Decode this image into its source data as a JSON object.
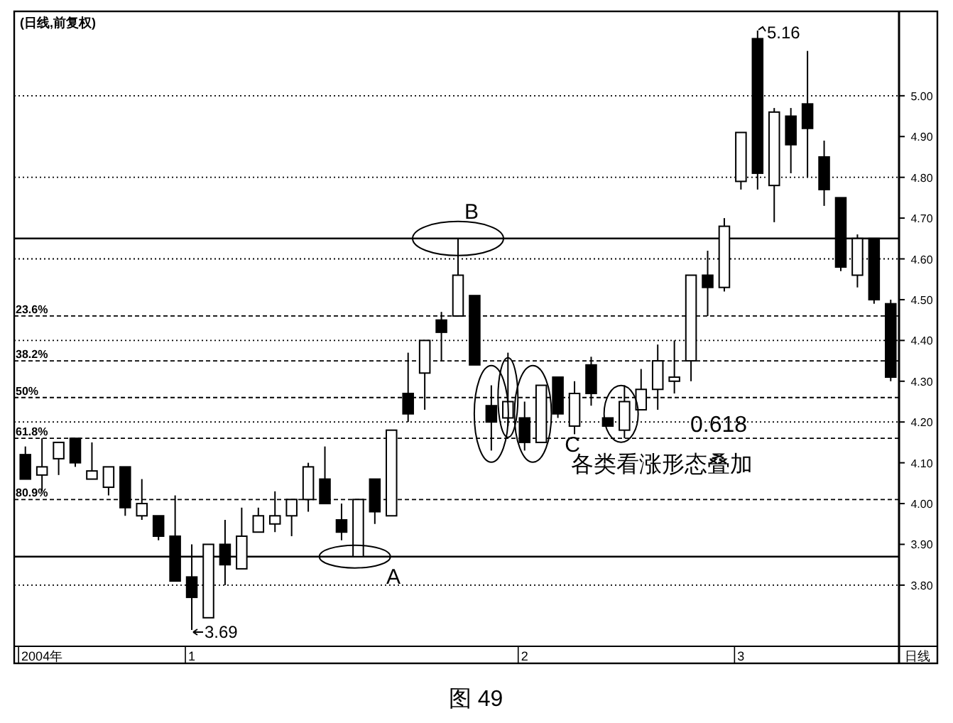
{
  "chart_data": {
    "type": "candlestick",
    "title": "(日线,前复权)",
    "categories": [
      null,
      "2004年",
      null,
      null,
      null,
      null,
      null,
      null,
      null,
      null,
      "1",
      null,
      null,
      null,
      null,
      null,
      null,
      null,
      null,
      null,
      null,
      null,
      null,
      null,
      null,
      null,
      null,
      null,
      null,
      null,
      "2",
      null,
      null,
      null,
      null,
      null,
      null,
      null,
      null,
      null,
      null,
      null,
      null,
      "3",
      null,
      null,
      null,
      null,
      null,
      null,
      null,
      null,
      null
    ],
    "ohlc": [
      [
        4.12,
        4.14,
        4.06,
        4.06
      ],
      [
        4.07,
        4.16,
        4.03,
        4.09
      ],
      [
        4.11,
        4.15,
        4.07,
        4.15
      ],
      [
        4.16,
        4.16,
        4.09,
        4.1
      ],
      [
        4.06,
        4.15,
        4.06,
        4.08
      ],
      [
        4.04,
        4.09,
        4.02,
        4.09
      ],
      [
        4.09,
        4.09,
        3.97,
        3.99
      ],
      [
        3.97,
        4.06,
        3.96,
        4.0
      ],
      [
        3.97,
        3.97,
        3.91,
        3.92
      ],
      [
        3.92,
        4.02,
        3.81,
        3.81
      ],
      [
        3.82,
        3.9,
        3.69,
        3.77
      ],
      [
        3.72,
        3.9,
        3.72,
        3.9
      ],
      [
        3.9,
        3.96,
        3.8,
        3.85
      ],
      [
        3.84,
        3.99,
        3.84,
        3.92
      ],
      [
        3.93,
        3.99,
        3.93,
        3.97
      ],
      [
        3.95,
        4.03,
        3.93,
        3.97
      ],
      [
        3.97,
        4.01,
        3.92,
        4.01
      ],
      [
        4.01,
        4.1,
        3.98,
        4.09
      ],
      [
        4.06,
        4.14,
        4.0,
        4.0
      ],
      [
        3.96,
        4.0,
        3.91,
        3.93
      ],
      [
        3.87,
        4.01,
        3.87,
        4.01
      ],
      [
        4.06,
        4.06,
        3.95,
        3.98
      ],
      [
        3.97,
        4.18,
        3.97,
        4.18
      ],
      [
        4.27,
        4.37,
        4.2,
        4.22
      ],
      [
        4.32,
        4.4,
        4.23,
        4.4
      ],
      [
        4.45,
        4.47,
        4.35,
        4.42
      ],
      [
        4.46,
        4.65,
        4.46,
        4.56
      ],
      [
        4.51,
        4.51,
        4.34,
        4.34
      ],
      [
        4.24,
        4.29,
        4.13,
        4.2
      ],
      [
        4.21,
        4.37,
        4.19,
        4.25
      ],
      [
        4.21,
        4.25,
        4.13,
        4.15
      ],
      [
        4.15,
        4.29,
        4.15,
        4.29
      ],
      [
        4.31,
        4.31,
        4.21,
        4.22
      ],
      [
        4.19,
        4.3,
        4.17,
        4.27
      ],
      [
        4.34,
        4.36,
        4.24,
        4.27
      ],
      [
        4.21,
        4.21,
        4.19,
        4.19
      ],
      [
        4.18,
        4.29,
        4.16,
        4.25
      ],
      [
        4.23,
        4.33,
        4.23,
        4.28
      ],
      [
        4.28,
        4.39,
        4.23,
        4.35
      ],
      [
        4.3,
        4.4,
        4.27,
        4.31
      ],
      [
        4.35,
        4.56,
        4.3,
        4.56
      ],
      [
        4.56,
        4.62,
        4.46,
        4.53
      ],
      [
        4.53,
        4.7,
        4.52,
        4.68
      ],
      [
        4.79,
        4.91,
        4.77,
        4.91
      ],
      [
        5.14,
        5.16,
        4.77,
        4.81
      ],
      [
        4.78,
        4.97,
        4.69,
        4.96
      ],
      [
        4.95,
        4.97,
        4.81,
        4.88
      ],
      [
        4.98,
        5.11,
        4.8,
        4.92
      ],
      [
        4.85,
        4.89,
        4.73,
        4.77
      ],
      [
        4.75,
        4.75,
        4.57,
        4.58
      ],
      [
        4.56,
        4.66,
        4.53,
        4.65
      ],
      [
        4.65,
        4.65,
        4.49,
        4.5
      ],
      [
        4.49,
        4.5,
        4.3,
        4.31
      ]
    ],
    "ylim": [
      3.65,
      5.2
    ],
    "yticks": [
      {
        "value": 3.8,
        "label": "3.80"
      },
      {
        "value": 3.9,
        "label": "3.90"
      },
      {
        "value": 4.0,
        "label": "4.00"
      },
      {
        "value": 4.1,
        "label": "4.10"
      },
      {
        "value": 4.2,
        "label": "4.20"
      },
      {
        "value": 4.3,
        "label": "4.30"
      },
      {
        "value": 4.4,
        "label": "4.40"
      },
      {
        "value": 4.5,
        "label": "4.50"
      },
      {
        "value": 4.6,
        "label": "4.60"
      },
      {
        "value": 4.7,
        "label": "4.70"
      },
      {
        "value": 4.8,
        "label": "4.80"
      },
      {
        "value": 4.9,
        "label": "4.90"
      },
      {
        "value": 5.0,
        "label": "5.00"
      }
    ],
    "ref_lines": [
      {
        "axis": "y",
        "value": 4.65,
        "line_style": "solid"
      },
      {
        "axis": "y",
        "value": 3.87,
        "line_style": "solid"
      },
      {
        "axis": "y",
        "value": 4.46,
        "line_style": "dashed"
      },
      {
        "axis": "y",
        "value": 4.35,
        "line_style": "dashed"
      },
      {
        "axis": "y",
        "value": 4.26,
        "line_style": "dashed"
      },
      {
        "axis": "y",
        "value": 4.16,
        "line_style": "dashed"
      },
      {
        "axis": "y",
        "value": 4.01,
        "line_style": "dashed"
      },
      {
        "axis": "y",
        "value": 5.0,
        "line_style": "dotted"
      },
      {
        "axis": "y",
        "value": 4.8,
        "line_style": "dotted"
      },
      {
        "axis": "y",
        "value": 4.6,
        "line_style": "dotted"
      },
      {
        "axis": "y",
        "value": 4.4,
        "line_style": "dotted"
      },
      {
        "axis": "y",
        "value": 4.2,
        "line_style": "dotted"
      },
      {
        "axis": "y",
        "value": 3.8,
        "line_style": "dotted"
      }
    ],
    "annotations": [
      {
        "text": "23.6%",
        "y": 4.46
      },
      {
        "text": "38.2%",
        "y": 4.35
      },
      {
        "text": "50%",
        "y": 4.26
      },
      {
        "text": "61.8%",
        "y": 4.16
      },
      {
        "text": "80.9%",
        "y": 4.01
      },
      "5.16",
      "3.69",
      "A",
      {
        "text": "B",
        "y": 4.65
      },
      "C",
      "0.618",
      "各类看涨形态叠加",
      "日线",
      "图 49"
    ]
  }
}
